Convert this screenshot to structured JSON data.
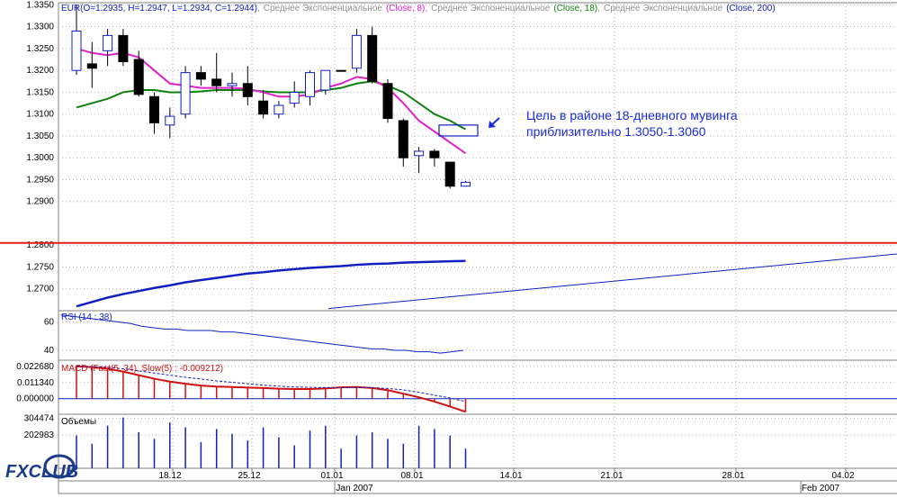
{
  "header": {
    "symbol": "EUR",
    "ohlc": "(O=1.2935, H=1.2947, L=1.2934, C=1.2944)",
    "ema_label": "Среднее Экспоненциальное",
    "ema8": "(Close, 8)",
    "ema18": "(Close, 18)",
    "ema200": "(Close, 200)",
    "sep": ","
  },
  "annotation": {
    "line1": "Цель в районе 18-дневного мувинга",
    "line2": "приблизительно 1.3050-1.3060"
  },
  "rsi": {
    "label": "RSI (14 ; 38)"
  },
  "macd": {
    "label": "MACD (Fast(5, 34), Slow(5) : -0.009212)"
  },
  "volume": {
    "label": "Объемы"
  },
  "logo": {
    "text": "FXCLUB"
  },
  "colors": {
    "ema8": "#e020c8",
    "ema18": "#108010",
    "ema200": "#1020c0",
    "level": "#e02020",
    "macd": "#d01010",
    "grid": "#b0b0b0",
    "annotation": "#1a2bd8"
  },
  "chart_data": [
    {
      "type": "candlestick",
      "series_name": "EUR",
      "ylim": [
        1.265,
        1.3355
      ],
      "y_ticks": [
        "1.3350",
        "1.3300",
        "1.3250",
        "1.3200",
        "1.3150",
        "1.3100",
        "1.3050",
        "1.3000",
        "1.2950",
        "1.2900",
        "1.2800",
        "1.2750",
        "1.2700"
      ],
      "x_ticks": [
        "18.12",
        "25.12",
        "01.01",
        "08.01",
        "14.01",
        "21.01",
        "28.01",
        "04.02"
      ],
      "x_months": [
        "Jan 2007",
        "Feb 2007"
      ],
      "candles": [
        {
          "o": 1.32,
          "h": 1.335,
          "l": 1.319,
          "c": 1.329
        },
        {
          "o": 1.3215,
          "h": 1.3265,
          "l": 1.316,
          "c": 1.3205
        },
        {
          "o": 1.3245,
          "h": 1.3295,
          "l": 1.321,
          "c": 1.328
        },
        {
          "o": 1.328,
          "h": 1.3295,
          "l": 1.321,
          "c": 1.322
        },
        {
          "o": 1.3225,
          "h": 1.3245,
          "l": 1.314,
          "c": 1.3145
        },
        {
          "o": 1.314,
          "h": 1.315,
          "l": 1.3055,
          "c": 1.308
        },
        {
          "o": 1.3075,
          "h": 1.3115,
          "l": 1.3045,
          "c": 1.3095
        },
        {
          "o": 1.31,
          "h": 1.321,
          "l": 1.309,
          "c": 1.3195
        },
        {
          "o": 1.3195,
          "h": 1.321,
          "l": 1.3165,
          "c": 1.318
        },
        {
          "o": 1.318,
          "h": 1.324,
          "l": 1.315,
          "c": 1.3165
        },
        {
          "o": 1.3165,
          "h": 1.3195,
          "l": 1.314,
          "c": 1.317
        },
        {
          "o": 1.317,
          "h": 1.321,
          "l": 1.312,
          "c": 1.314
        },
        {
          "o": 1.313,
          "h": 1.3155,
          "l": 1.309,
          "c": 1.31
        },
        {
          "o": 1.31,
          "h": 1.313,
          "l": 1.309,
          "c": 1.312
        },
        {
          "o": 1.3125,
          "h": 1.3175,
          "l": 1.3115,
          "c": 1.315
        },
        {
          "o": 1.314,
          "h": 1.32,
          "l": 1.312,
          "c": 1.3195
        },
        {
          "o": 1.3155,
          "h": 1.3195,
          "l": 1.3145,
          "c": 1.32
        },
        {
          "o": 1.32,
          "h": 1.32,
          "l": 1.32,
          "c": 1.32
        },
        {
          "o": 1.3205,
          "h": 1.3295,
          "l": 1.3195,
          "c": 1.328
        },
        {
          "o": 1.328,
          "h": 1.33,
          "l": 1.317,
          "c": 1.3175
        },
        {
          "o": 1.317,
          "h": 1.318,
          "l": 1.308,
          "c": 1.309
        },
        {
          "o": 1.3085,
          "h": 1.309,
          "l": 1.298,
          "c": 1.3
        },
        {
          "o": 1.3005,
          "h": 1.3025,
          "l": 1.2965,
          "c": 1.3015
        },
        {
          "o": 1.3015,
          "h": 1.302,
          "l": 1.298,
          "c": 1.3
        },
        {
          "o": 1.299,
          "h": 1.299,
          "l": 1.293,
          "c": 1.2935
        },
        {
          "o": 1.2935,
          "h": 1.2947,
          "l": 1.2934,
          "c": 1.2944
        }
      ],
      "ema8": [
        1.325,
        1.324,
        1.3235,
        1.324,
        1.323,
        1.32,
        1.317,
        1.3165,
        1.316,
        1.316,
        1.316,
        1.3158,
        1.315,
        1.314,
        1.314,
        1.3145,
        1.316,
        1.317,
        1.3185,
        1.318,
        1.316,
        1.3125,
        1.3085,
        1.306,
        1.3035,
        1.301
      ],
      "ema18": [
        1.3115,
        1.3125,
        1.3135,
        1.315,
        1.3155,
        1.3155,
        1.315,
        1.315,
        1.3152,
        1.3155,
        1.3155,
        1.3155,
        1.3152,
        1.315,
        1.315,
        1.315,
        1.3155,
        1.316,
        1.317,
        1.3175,
        1.3165,
        1.315,
        1.3125,
        1.31,
        1.3085,
        1.3065
      ],
      "ema200": [
        1.266,
        1.267,
        1.268,
        1.2688,
        1.2695,
        1.2702,
        1.2708,
        1.2715,
        1.272,
        1.2725,
        1.273,
        1.2735,
        1.2738,
        1.2742,
        1.2745,
        1.2748,
        1.275,
        1.2752,
        1.2755,
        1.2757,
        1.2758,
        1.276,
        1.2761,
        1.2762,
        1.2763,
        1.2764
      ],
      "level": 1.2805,
      "target_zone": [
        1.305,
        1.3075
      ],
      "trendline_from": 1.2655,
      "trendline_to": 1.278
    },
    {
      "type": "line",
      "series_name": "RSI (14 ; 38)",
      "ylim": [
        33,
        68
      ],
      "y_ticks": [
        "60",
        "40"
      ],
      "values": [
        65,
        64,
        63,
        62,
        61,
        60,
        59,
        57,
        56,
        55,
        55,
        54,
        54,
        54,
        53,
        53,
        52,
        51,
        50,
        49,
        48,
        47,
        46,
        45,
        44,
        43,
        42,
        41,
        41,
        40,
        40,
        39,
        39,
        38,
        39,
        40
      ]
    },
    {
      "type": "bar",
      "series_name": "MACD",
      "ylim": [
        -0.0109,
        0.027
      ],
      "y_ticks": [
        "0.022680",
        "0.011340",
        "0.000000"
      ],
      "values": [
        0.0227,
        0.0222,
        0.021,
        0.019,
        0.0165,
        0.014,
        0.012,
        0.0105,
        0.0092,
        0.0085,
        0.0082,
        0.0078,
        0.0075,
        0.007,
        0.0068,
        0.0068,
        0.0072,
        0.008,
        0.0082,
        0.0075,
        0.006,
        0.0035,
        0.001,
        -0.002,
        -0.0055,
        -0.0092
      ],
      "signal": [
        0.0227,
        0.0225,
        0.022,
        0.021,
        0.0195,
        0.018,
        0.0165,
        0.015,
        0.0138,
        0.0125,
        0.0115,
        0.0105,
        0.0095,
        0.0088,
        0.0082,
        0.008,
        0.0078,
        0.0078,
        0.0079,
        0.0078,
        0.0072,
        0.0062,
        0.0045,
        0.0025,
        0.0005,
        -0.002
      ]
    },
    {
      "type": "bar",
      "series_name": "Объемы",
      "y_ticks": [
        "304474",
        "202983"
      ],
      "ylim": [
        0,
        330000
      ],
      "values": [
        200000,
        150000,
        260000,
        310000,
        220000,
        180000,
        280000,
        250000,
        160000,
        240000,
        210000,
        170000,
        250000,
        190000,
        140000,
        230000,
        260000,
        120000,
        200000,
        220000,
        180000,
        150000,
        260000,
        240000,
        200000,
        120000
      ]
    }
  ]
}
